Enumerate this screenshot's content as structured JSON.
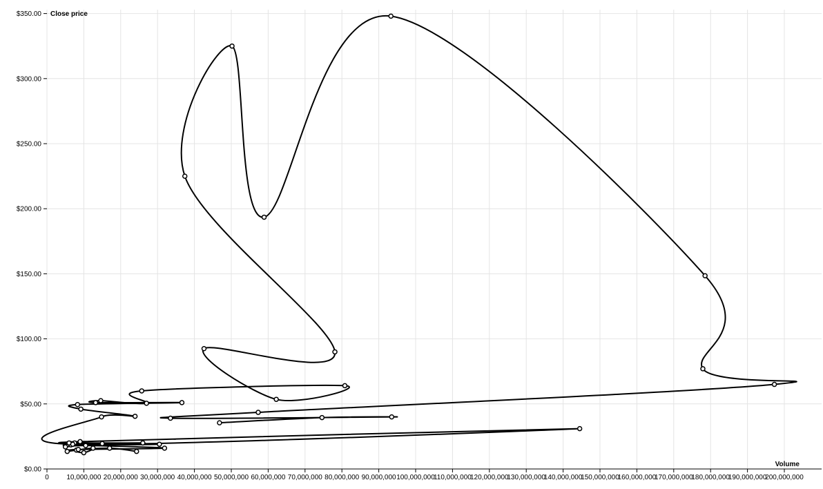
{
  "chart_data": {
    "type": "line",
    "subtype": "connected-scatter",
    "title": "",
    "xlabel": "Volume",
    "ylabel": "Close price",
    "xlim": [
      0,
      210000000
    ],
    "ylim": [
      0,
      350
    ],
    "x_ticks": [
      0,
      10000000,
      20000000,
      30000000,
      40000000,
      50000000,
      60000000,
      70000000,
      80000000,
      90000000,
      100000000,
      110000000,
      120000000,
      130000000,
      140000000,
      150000000,
      160000000,
      170000000,
      180000000,
      190000000,
      200000000
    ],
    "x_tick_labels": [
      "0",
      "10,000,000",
      "20,000,000",
      "30,000,000",
      "40,000,000",
      "50,000,000",
      "60,000,000",
      "70,000,000",
      "80,000,000",
      "90,000,000",
      "100,000,000",
      "110,000,000",
      "120,000,000",
      "130,000,000",
      "140,000,000",
      "150,000,000",
      "160,000,000",
      "170,000,000",
      "180,000,000",
      "190,000,000",
      "200,000,000"
    ],
    "y_ticks": [
      0,
      50,
      100,
      150,
      200,
      250,
      300,
      350
    ],
    "y_tick_labels": [
      "$0.00",
      "$50.00",
      "$100.00",
      "$150.00",
      "$200.00",
      "$250.00",
      "$300.00",
      "$350.00"
    ],
    "grid": true,
    "series": [
      {
        "points": [
          {
            "x": 24300000,
            "y": 13.5
          },
          {
            "x": 17000000,
            "y": 16.0
          },
          {
            "x": 8000000,
            "y": 14.5
          },
          {
            "x": 10000000,
            "y": 12.5
          },
          {
            "x": 12500000,
            "y": 16.0
          },
          {
            "x": 5500000,
            "y": 13.5
          },
          {
            "x": 8500000,
            "y": 15.0
          },
          {
            "x": 31900000,
            "y": 16.0
          },
          {
            "x": 10500000,
            "y": 18.0
          },
          {
            "x": 5000000,
            "y": 17.0
          },
          {
            "x": 7500000,
            "y": 20.0
          },
          {
            "x": 30500000,
            "y": 19.0
          },
          {
            "x": 6500000,
            "y": 18.5
          },
          {
            "x": 15000000,
            "y": 19.5
          },
          {
            "x": 6000000,
            "y": 20.0
          },
          {
            "x": 26000000,
            "y": 20.0
          },
          {
            "x": 9000000,
            "y": 21.0
          },
          {
            "x": 144500000,
            "y": 31.0
          },
          {
            "x": 7000000,
            "y": 19.0
          },
          {
            "x": 14800000,
            "y": 40.0
          },
          {
            "x": 23900000,
            "y": 40.5
          },
          {
            "x": 9200000,
            "y": 46.0
          },
          {
            "x": 8300000,
            "y": 49.5
          },
          {
            "x": 36600000,
            "y": 51.0
          },
          {
            "x": 13200000,
            "y": 51.0
          },
          {
            "x": 14600000,
            "y": 52.5
          },
          {
            "x": 27000000,
            "y": 50.5
          },
          {
            "x": 25700000,
            "y": 60.0
          },
          {
            "x": 80800000,
            "y": 64.0
          },
          {
            "x": 62200000,
            "y": 53.5
          },
          {
            "x": 42600000,
            "y": 92.5
          },
          {
            "x": 78100000,
            "y": 90.0
          },
          {
            "x": 37400000,
            "y": 225.0
          },
          {
            "x": 50200000,
            "y": 325.0
          },
          {
            "x": 58900000,
            "y": 193.5
          },
          {
            "x": 93300000,
            "y": 348.0
          },
          {
            "x": 178500000,
            "y": 148.5
          },
          {
            "x": 177900000,
            "y": 77.0
          },
          {
            "x": 197300000,
            "y": 65.0
          },
          {
            "x": 57300000,
            "y": 43.5
          },
          {
            "x": 33500000,
            "y": 39.0
          },
          {
            "x": 93500000,
            "y": 40.0
          },
          {
            "x": 74600000,
            "y": 39.5
          },
          {
            "x": 46800000,
            "y": 35.5
          }
        ]
      }
    ]
  }
}
